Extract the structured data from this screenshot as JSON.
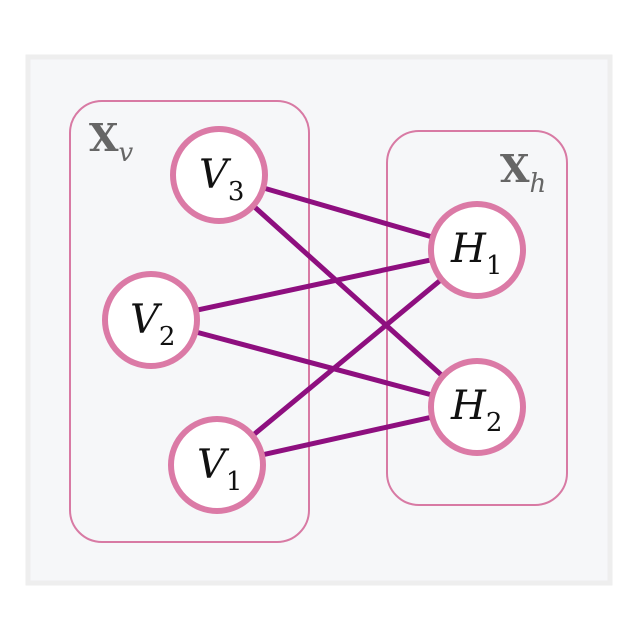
{
  "colors": {
    "background": "#f6f7f9",
    "frame": "#eeeeee",
    "group_border": "#d87aa4",
    "node_border": "#db7aa6",
    "node_fill": "#ffffff",
    "edge": "#8e0f7f",
    "group_label": "#666666",
    "node_text": "#111111"
  },
  "groups": [
    {
      "id": "visible",
      "label": "X",
      "sub": "v"
    },
    {
      "id": "hidden",
      "label": "X",
      "sub": "h"
    }
  ],
  "nodes": [
    {
      "id": "V3",
      "label": "V",
      "sub": "3",
      "group": "visible"
    },
    {
      "id": "V2",
      "label": "V",
      "sub": "2",
      "group": "visible"
    },
    {
      "id": "V1",
      "label": "V",
      "sub": "1",
      "group": "visible"
    },
    {
      "id": "H1",
      "label": "H",
      "sub": "1",
      "group": "hidden"
    },
    {
      "id": "H2",
      "label": "H",
      "sub": "2",
      "group": "hidden"
    }
  ],
  "edges": [
    {
      "from": "V3",
      "to": "H1"
    },
    {
      "from": "V3",
      "to": "H2"
    },
    {
      "from": "V2",
      "to": "H1"
    },
    {
      "from": "V2",
      "to": "H2"
    },
    {
      "from": "V1",
      "to": "H1"
    },
    {
      "from": "V1",
      "to": "H2"
    }
  ]
}
